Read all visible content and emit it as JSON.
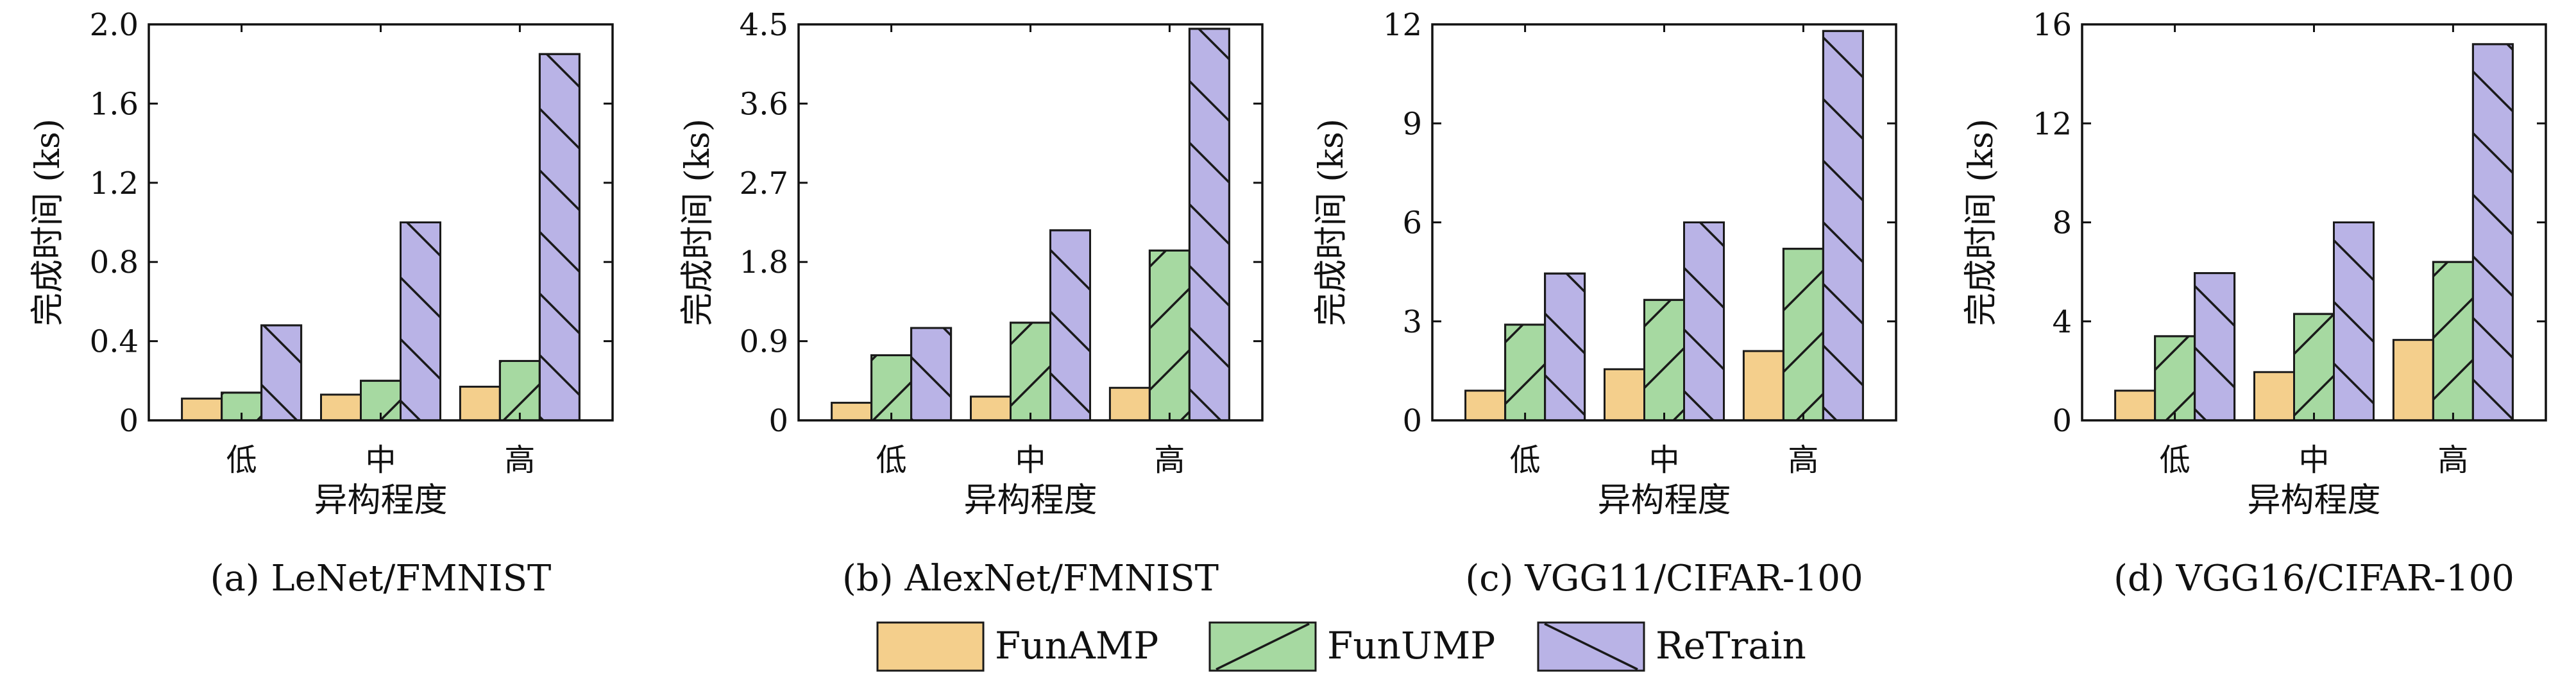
{
  "colors": {
    "FunAMP": "#f4cf8c",
    "FunUMP": "#a6d9a1",
    "ReTrain": "#b9b3e6"
  },
  "legend": [
    {
      "name": "FunAMP",
      "color": "#f4cf8c",
      "hatch": "none"
    },
    {
      "name": "FunUMP",
      "color": "#a6d9a1",
      "hatch": "forward"
    },
    {
      "name": "ReTrain",
      "color": "#b9b3e6",
      "hatch": "backward"
    }
  ],
  "chart_data": [
    {
      "type": "bar",
      "caption": "(a) LeNet/FMNIST",
      "categories": [
        "低",
        "中",
        "高"
      ],
      "xlabel": "异构程度",
      "ylabel": "完成时间 (ks)",
      "ylim": [
        0,
        2.0
      ],
      "yticks": [
        "0",
        "0.4",
        "0.8",
        "1.2",
        "1.6",
        "2.0"
      ],
      "series": [
        {
          "name": "FunAMP",
          "values": [
            0.11,
            0.13,
            0.17
          ]
        },
        {
          "name": "FunUMP",
          "values": [
            0.14,
            0.2,
            0.3
          ]
        },
        {
          "name": "ReTrain",
          "values": [
            0.48,
            1.0,
            1.85
          ]
        }
      ]
    },
    {
      "type": "bar",
      "caption": "(b) AlexNet/FMNIST",
      "categories": [
        "低",
        "中",
        "高"
      ],
      "xlabel": "异构程度",
      "ylabel": "完成时间 (ks)",
      "ylim": [
        0,
        4.5
      ],
      "yticks": [
        "0",
        "0.9",
        "1.8",
        "2.7",
        "3.6",
        "4.5"
      ],
      "series": [
        {
          "name": "FunAMP",
          "values": [
            0.2,
            0.27,
            0.37
          ]
        },
        {
          "name": "FunUMP",
          "values": [
            0.74,
            1.11,
            1.93
          ]
        },
        {
          "name": "ReTrain",
          "values": [
            1.05,
            2.16,
            4.45
          ]
        }
      ]
    },
    {
      "type": "bar",
      "caption": "(c) VGG11/CIFAR-100",
      "categories": [
        "低",
        "中",
        "高"
      ],
      "xlabel": "异构程度",
      "ylabel": "完成时间 (ks)",
      "ylim": [
        0,
        12
      ],
      "yticks": [
        "0",
        "3",
        "6",
        "9",
        "12"
      ],
      "series": [
        {
          "name": "FunAMP",
          "values": [
            0.9,
            1.55,
            2.1
          ]
        },
        {
          "name": "FunUMP",
          "values": [
            2.9,
            3.65,
            5.2
          ]
        },
        {
          "name": "ReTrain",
          "values": [
            4.45,
            6.0,
            11.8
          ]
        }
      ]
    },
    {
      "type": "bar",
      "caption": "(d) VGG16/CIFAR-100",
      "categories": [
        "低",
        "中",
        "高"
      ],
      "xlabel": "异构程度",
      "ylabel": "完成时间 (ks)",
      "ylim": [
        0,
        16
      ],
      "yticks": [
        "0",
        "4",
        "8",
        "12",
        "16"
      ],
      "series": [
        {
          "name": "FunAMP",
          "values": [
            1.2,
            1.95,
            3.25
          ]
        },
        {
          "name": "FunUMP",
          "values": [
            3.4,
            4.3,
            6.4
          ]
        },
        {
          "name": "ReTrain",
          "values": [
            5.95,
            8.0,
            15.2
          ]
        }
      ]
    }
  ]
}
